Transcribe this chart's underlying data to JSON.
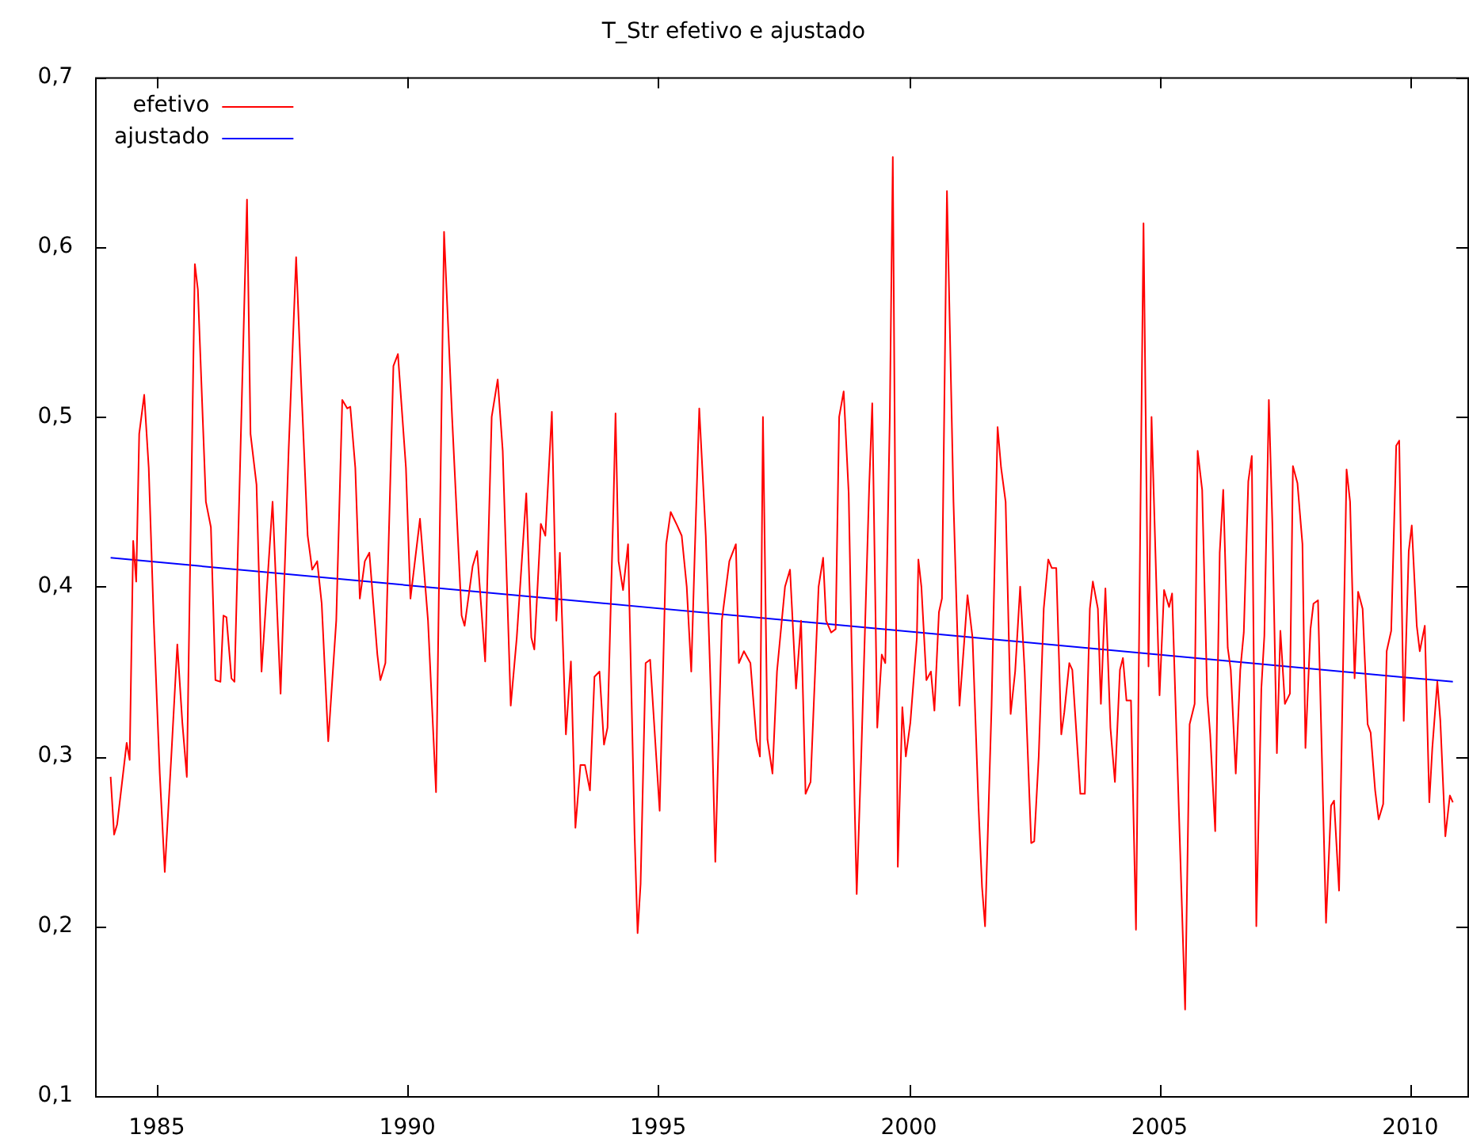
{
  "chart_data": {
    "type": "line",
    "title": "T_Str efetivo e ajustado",
    "xlim": [
      1983.77,
      2011.14
    ],
    "xticks": [
      1985,
      1990,
      1995,
      2000,
      2005,
      2010
    ],
    "ylim": [
      0.1,
      0.7
    ],
    "yticks": [
      {
        "value": 0.1,
        "label": "0,1"
      },
      {
        "value": 0.2,
        "label": "0,2"
      },
      {
        "value": 0.3,
        "label": "0,3"
      },
      {
        "value": 0.4,
        "label": "0,4"
      },
      {
        "value": 0.5,
        "label": "0,5"
      },
      {
        "value": 0.6,
        "label": "0,6"
      },
      {
        "value": 0.7,
        "label": "0,7"
      }
    ],
    "grid": false,
    "legend": "top left",
    "marker": "none",
    "line_style": "solid",
    "series": [
      {
        "name": "efetivo",
        "type": "line",
        "color": "#ff0000",
        "x": [
          1984.08,
          1984.15,
          1984.21,
          1984.4,
          1984.46,
          1984.53,
          1984.59,
          1984.65,
          1984.75,
          1984.84,
          1984.94,
          1985.06,
          1985.16,
          1985.29,
          1985.41,
          1985.51,
          1985.6,
          1985.76,
          1985.82,
          1985.98,
          1986.08,
          1986.17,
          1986.27,
          1986.33,
          1986.39,
          1986.49,
          1986.55,
          1986.8,
          1986.87,
          1986.99,
          1987.09,
          1987.31,
          1987.47,
          1987.63,
          1987.78,
          1987.88,
          1988.01,
          1988.1,
          1988.2,
          1988.29,
          1988.42,
          1988.58,
          1988.7,
          1988.8,
          1988.86,
          1988.96,
          1989.05,
          1989.15,
          1989.24,
          1989.4,
          1989.46,
          1989.56,
          1989.72,
          1989.81,
          1989.97,
          1990.06,
          1990.25,
          1990.41,
          1990.57,
          1990.73,
          1990.89,
          1991.08,
          1991.14,
          1991.3,
          1991.39,
          1991.55,
          1991.68,
          1991.8,
          1991.9,
          1992.06,
          1992.18,
          1992.37,
          1992.47,
          1992.53,
          1992.66,
          1992.75,
          1992.88,
          1992.97,
          1993.04,
          1993.16,
          1993.26,
          1993.35,
          1993.45,
          1993.54,
          1993.64,
          1993.73,
          1993.83,
          1993.92,
          1993.99,
          1994.11,
          1994.15,
          1994.21,
          1994.3,
          1994.4,
          1994.53,
          1994.59,
          1994.65,
          1994.75,
          1994.84,
          1994.97,
          1995.03,
          1995.16,
          1995.25,
          1995.38,
          1995.47,
          1995.57,
          1995.66,
          1995.73,
          1995.82,
          1995.95,
          1996.08,
          1996.14,
          1996.27,
          1996.42,
          1996.55,
          1996.61,
          1996.71,
          1996.84,
          1996.96,
          1997.03,
          1997.09,
          1997.18,
          1997.28,
          1997.37,
          1997.53,
          1997.63,
          1997.75,
          1997.85,
          1997.94,
          1998.04,
          1998.2,
          1998.29,
          1998.35,
          1998.45,
          1998.54,
          1998.61,
          1998.7,
          1998.8,
          1998.92,
          1998.96,
          1999.05,
          1999.21,
          1999.27,
          1999.37,
          1999.46,
          1999.53,
          1999.62,
          1999.68,
          1999.78,
          1999.87,
          1999.94,
          2000.03,
          2000.16,
          2000.19,
          2000.25,
          2000.35,
          2000.44,
          2000.51,
          2000.6,
          2000.66,
          2000.76,
          2000.89,
          2001.01,
          2001.11,
          2001.17,
          2001.27,
          2001.39,
          2001.46,
          2001.52,
          2001.65,
          2001.77,
          2001.84,
          2001.93,
          2002.03,
          2002.12,
          2002.22,
          2002.31,
          2002.44,
          2002.5,
          2002.59,
          2002.69,
          2002.78,
          2002.85,
          2002.94,
          2003.04,
          2003.1,
          2003.2,
          2003.26,
          2003.42,
          2003.51,
          2003.61,
          2003.67,
          2003.77,
          2003.83,
          2003.92,
          2004.02,
          2004.11,
          2004.21,
          2004.27,
          2004.34,
          2004.43,
          2004.53,
          2004.68,
          2004.78,
          2004.84,
          2005.0,
          2005.09,
          2005.19,
          2005.25,
          2005.51,
          2005.6,
          2005.7,
          2005.76,
          2005.85,
          2005.95,
          2006.01,
          2006.11,
          2006.2,
          2006.27,
          2006.36,
          2006.42,
          2006.52,
          2006.61,
          2006.68,
          2006.77,
          2006.84,
          2006.93,
          2007.03,
          2007.09,
          2007.18,
          2007.25,
          2007.34,
          2007.41,
          2007.5,
          2007.6,
          2007.66,
          2007.75,
          2007.85,
          2007.91,
          2008.01,
          2008.07,
          2008.16,
          2008.32,
          2008.42,
          2008.48,
          2008.58,
          2008.73,
          2008.8,
          2008.89,
          2008.96,
          2009.05,
          2009.15,
          2009.21,
          2009.3,
          2009.37,
          2009.46,
          2009.53,
          2009.62,
          2009.72,
          2009.78,
          2009.87,
          2009.97,
          2010.03,
          2010.13,
          2010.19,
          2010.29,
          2010.38,
          2010.44,
          2010.54,
          2010.6,
          2010.7,
          2010.79,
          2010.85
        ],
        "values": [
          0.288,
          0.254,
          0.26,
          0.308,
          0.298,
          0.427,
          0.403,
          0.49,
          0.513,
          0.47,
          0.38,
          0.29,
          0.232,
          0.3,
          0.366,
          0.32,
          0.288,
          0.59,
          0.575,
          0.45,
          0.435,
          0.345,
          0.344,
          0.383,
          0.382,
          0.346,
          0.344,
          0.628,
          0.49,
          0.46,
          0.35,
          0.45,
          0.337,
          0.48,
          0.594,
          0.52,
          0.43,
          0.41,
          0.415,
          0.39,
          0.309,
          0.38,
          0.51,
          0.505,
          0.506,
          0.47,
          0.393,
          0.415,
          0.42,
          0.36,
          0.345,
          0.355,
          0.53,
          0.537,
          0.47,
          0.393,
          0.44,
          0.38,
          0.279,
          0.609,
          0.5,
          0.383,
          0.377,
          0.412,
          0.421,
          0.356,
          0.5,
          0.522,
          0.48,
          0.33,
          0.37,
          0.455,
          0.37,
          0.363,
          0.437,
          0.43,
          0.503,
          0.38,
          0.42,
          0.313,
          0.356,
          0.258,
          0.295,
          0.295,
          0.28,
          0.347,
          0.35,
          0.307,
          0.317,
          0.45,
          0.502,
          0.415,
          0.398,
          0.425,
          0.254,
          0.196,
          0.225,
          0.355,
          0.357,
          0.296,
          0.268,
          0.425,
          0.444,
          0.436,
          0.43,
          0.4,
          0.35,
          0.42,
          0.505,
          0.43,
          0.31,
          0.238,
          0.38,
          0.415,
          0.425,
          0.355,
          0.362,
          0.355,
          0.31,
          0.3,
          0.5,
          0.31,
          0.29,
          0.35,
          0.4,
          0.41,
          0.34,
          0.38,
          0.278,
          0.285,
          0.4,
          0.417,
          0.38,
          0.373,
          0.375,
          0.5,
          0.515,
          0.455,
          0.27,
          0.219,
          0.3,
          0.46,
          0.508,
          0.317,
          0.36,
          0.355,
          0.5,
          0.653,
          0.235,
          0.329,
          0.3,
          0.32,
          0.37,
          0.416,
          0.4,
          0.345,
          0.35,
          0.327,
          0.385,
          0.393,
          0.633,
          0.45,
          0.33,
          0.37,
          0.395,
          0.37,
          0.27,
          0.223,
          0.2,
          0.33,
          0.494,
          0.47,
          0.45,
          0.325,
          0.35,
          0.4,
          0.35,
          0.249,
          0.25,
          0.3,
          0.387,
          0.416,
          0.411,
          0.411,
          0.313,
          0.326,
          0.355,
          0.351,
          0.278,
          0.278,
          0.387,
          0.403,
          0.387,
          0.331,
          0.399,
          0.317,
          0.285,
          0.351,
          0.358,
          0.333,
          0.333,
          0.198,
          0.614,
          0.353,
          0.5,
          0.336,
          0.398,
          0.388,
          0.396,
          0.151,
          0.319,
          0.331,
          0.48,
          0.457,
          0.336,
          0.313,
          0.256,
          0.42,
          0.457,
          0.364,
          0.351,
          0.29,
          0.351,
          0.373,
          0.462,
          0.477,
          0.2,
          0.34,
          0.371,
          0.51,
          0.437,
          0.302,
          0.374,
          0.331,
          0.337,
          0.471,
          0.461,
          0.425,
          0.305,
          0.375,
          0.39,
          0.392,
          0.202,
          0.271,
          0.274,
          0.221,
          0.469,
          0.45,
          0.346,
          0.397,
          0.387,
          0.319,
          0.314,
          0.28,
          0.263,
          0.272,
          0.362,
          0.374,
          0.483,
          0.486,
          0.321,
          0.421,
          0.436,
          0.377,
          0.362,
          0.377,
          0.273,
          0.305,
          0.344,
          0.321,
          0.253,
          0.277,
          0.273
        ]
      },
      {
        "name": "ajustado",
        "type": "line",
        "color": "#0000ff",
        "x": [
          1984.08,
          2010.85
        ],
        "values": [
          0.417,
          0.344
        ]
      }
    ]
  }
}
